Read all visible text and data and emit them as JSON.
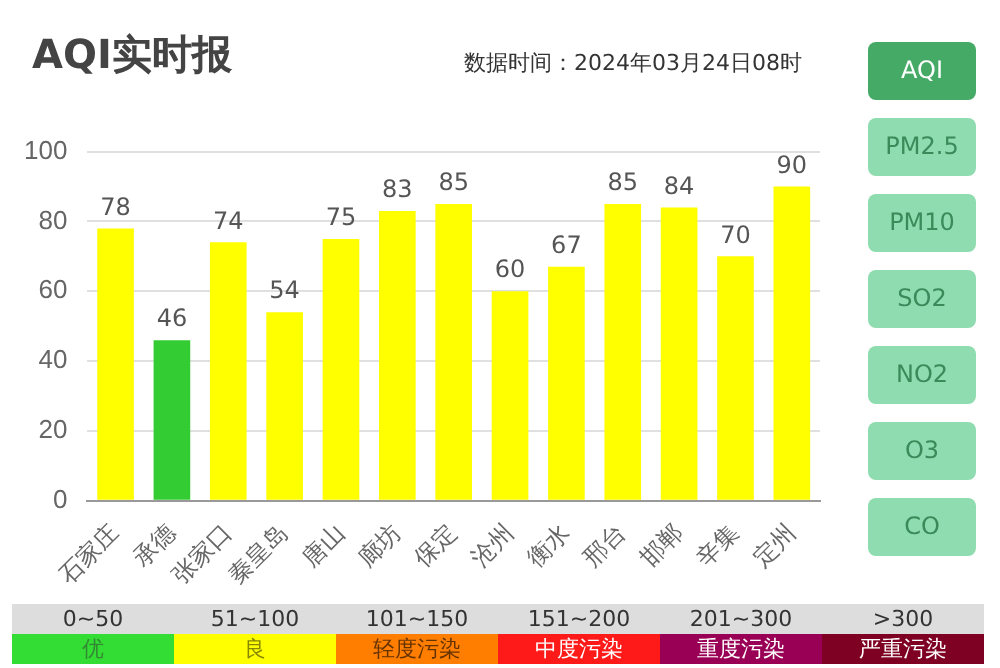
{
  "chart_data": {
    "type": "bar",
    "title": "AQI实时报",
    "subtitle": "数据时间：2024年03月24日08时",
    "categories": [
      "石家庄",
      "承德",
      "张家口",
      "秦皇岛",
      "唐山",
      "廊坊",
      "保定",
      "沧州",
      "衡水",
      "邢台",
      "邯郸",
      "辛集",
      "定州"
    ],
    "values": [
      78,
      46,
      74,
      54,
      75,
      83,
      85,
      60,
      67,
      85,
      84,
      70,
      90
    ],
    "colors": [
      "#ffff00",
      "#33cc33",
      "#ffff00",
      "#ffff00",
      "#ffff00",
      "#ffff00",
      "#ffff00",
      "#ffff00",
      "#ffff00",
      "#ffff00",
      "#ffff00",
      "#ffff00",
      "#ffff00"
    ],
    "ylim": [
      0,
      100
    ],
    "yticks": [
      0,
      20,
      40,
      60,
      80,
      100
    ],
    "grid": "y",
    "data_labels": true,
    "legend": false,
    "annotations": [
      "AQI",
      "PM2.5",
      "PM10",
      "SO2",
      "NO2",
      "O3",
      "CO",
      "0~50",
      "优",
      "51~100",
      "良",
      "101~150",
      "轻度污染",
      "151~200",
      "中度污染",
      "201~300",
      "重度污染",
      ">300",
      "严重污染"
    ]
  }
}
